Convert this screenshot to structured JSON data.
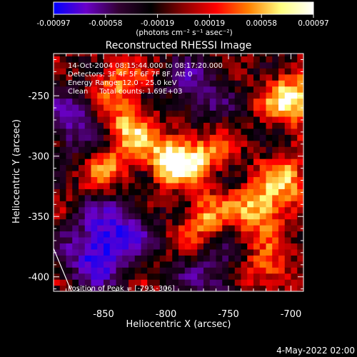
{
  "colorbar": {
    "tick_labels": [
      "-0.00097",
      "-0.00058",
      "-0.00019",
      "0.00019",
      "0.00058",
      "0.00097"
    ],
    "unit_label": "(photons cm⁻² s⁻¹ asec⁻²)",
    "stops": [
      "#0000ff",
      "#6a00c8",
      "#330033",
      "#000000",
      "#8b0000",
      "#ff0000",
      "#ff8000",
      "#ffff80",
      "#ffffff"
    ]
  },
  "chart_data": {
    "type": "heatmap",
    "title": "Reconstructed RHESSI Image",
    "xlabel": "Heliocentric X (arcsec)",
    "ylabel": "Heliocentric Y (arcsec)",
    "xlim": [
      -890,
      -690
    ],
    "ylim": [
      -412,
      -215
    ],
    "xticks": [
      -850,
      -800,
      -750,
      -700
    ],
    "yticks": [
      -250,
      -300,
      -350,
      -400
    ],
    "xtick_labels": [
      "-850",
      "-800",
      "-750",
      "-700"
    ],
    "ytick_labels": [
      "-250",
      "-300",
      "-350",
      "-400"
    ],
    "zlim": [
      -0.00097,
      0.00097
    ],
    "peak": {
      "x": -793,
      "y": -306
    },
    "info_lines": [
      "14-Oct-2004 08:15:44.000 to 08:17:20.000",
      "Detectors: 3F 4F 5F 6F 7F 8F, Att 0",
      "Energy Range: 12.0 - 25.0 keV",
      "Clean     Total counts: 1.69E+03"
    ],
    "peak_label": "Position of Peak = [-793,-306]",
    "hot_spots": [
      {
        "x": -795,
        "y": -302,
        "amp": 1.0
      },
      {
        "x": -700,
        "y": -252,
        "amp": 0.9
      },
      {
        "x": -725,
        "y": -345,
        "amp": 0.8
      },
      {
        "x": -830,
        "y": -275,
        "amp": 0.7
      },
      {
        "x": -840,
        "y": -240,
        "amp": 0.55
      },
      {
        "x": -770,
        "y": -300,
        "amp": 0.5
      },
      {
        "x": -770,
        "y": -350,
        "amp": 0.6
      },
      {
        "x": -720,
        "y": -395,
        "amp": 0.55
      },
      {
        "x": -705,
        "y": -320,
        "amp": 0.6
      },
      {
        "x": -845,
        "y": -310,
        "amp": 0.45
      }
    ],
    "cold_spots": [
      {
        "x": -855,
        "y": -380,
        "amp": 0.9
      },
      {
        "x": -875,
        "y": -270,
        "amp": 0.6
      },
      {
        "x": -775,
        "y": -245,
        "amp": 0.5
      },
      {
        "x": -835,
        "y": -355,
        "amp": 0.55
      },
      {
        "x": -760,
        "y": -400,
        "amp": 0.45
      }
    ]
  },
  "footer": {
    "timestamp": "4-May-2022 02:00"
  }
}
